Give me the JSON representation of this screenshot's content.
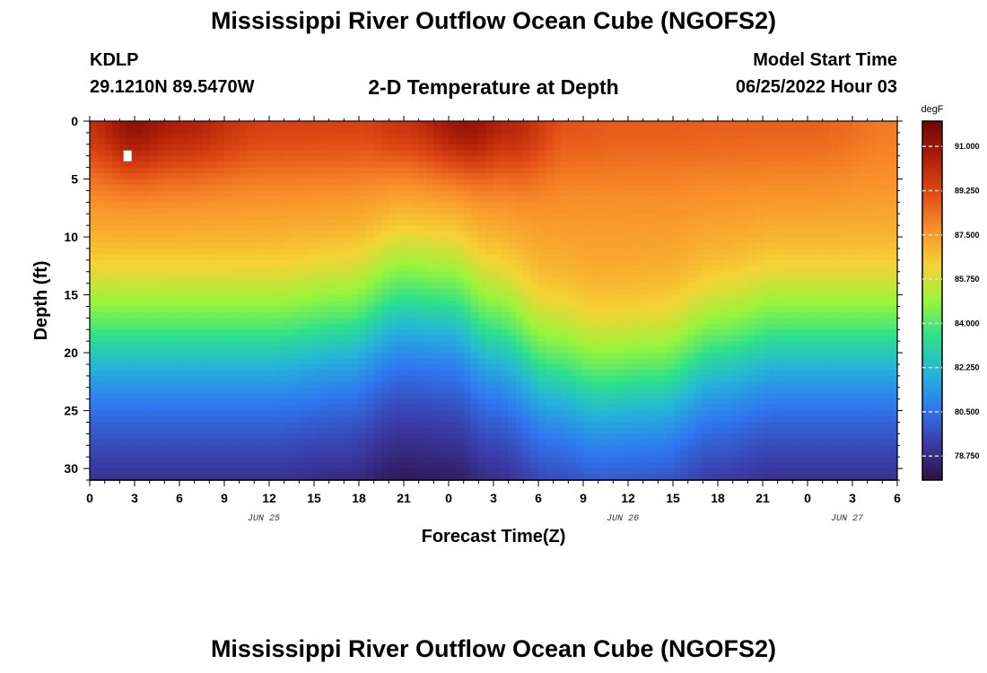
{
  "header": {
    "title": "Mississippi River Outflow Ocean Cube (NGOFS2)",
    "station": "KDLP",
    "coords": "29.1210N  89.5470W",
    "subtitle": "2-D Temperature at Depth",
    "model_start_label": "Model Start Time",
    "model_start_value": "06/25/2022 Hour 03"
  },
  "footer": {
    "title": "Mississippi River Outflow Ocean Cube (NGOFS2)"
  },
  "chart_data": {
    "type": "heatmap",
    "title": "2-D Temperature at Depth",
    "xlabel": "Forecast Time(Z)",
    "ylabel": "Depth (ft)",
    "x_tick_labels": [
      "0",
      "3",
      "6",
      "9",
      "12",
      "15",
      "18",
      "21",
      "0",
      "3",
      "6",
      "9",
      "12",
      "15",
      "18",
      "21",
      "0",
      "3",
      "6"
    ],
    "x_range_hours": [
      0,
      54
    ],
    "date_labels": [
      {
        "label": "JUN 25",
        "hour": 12
      },
      {
        "label": "JUN 26",
        "hour": 36
      },
      {
        "label": "JUN 27",
        "hour": 51
      }
    ],
    "y_ticks": [
      0,
      5,
      10,
      15,
      20,
      25,
      30
    ],
    "y_range": [
      0,
      31
    ],
    "y_reversed": true,
    "colorbar": {
      "unit": "degF",
      "range": [
        77.8,
        92.0
      ],
      "tick_values": [
        91.0,
        89.25,
        87.5,
        85.75,
        84.0,
        82.25,
        80.5,
        78.75
      ],
      "tick_labels": [
        "91.000",
        "89.250",
        "87.500",
        "85.750",
        "84.000",
        "82.250",
        "80.500",
        "78.750"
      ],
      "colormap": [
        "#2c1042",
        "#3b3aa6",
        "#2f78f0",
        "#25b6d8",
        "#2ee08c",
        "#98f53c",
        "#f6d235",
        "#f98f2a",
        "#e04a14",
        "#b01e08",
        "#6e0606"
      ]
    },
    "thermocline_depth_ft": [
      {
        "hour": 0,
        "depth": 16.6
      },
      {
        "hour": 6,
        "depth": 16.6
      },
      {
        "hour": 12,
        "depth": 16.6
      },
      {
        "hour": 17,
        "depth": 15.8
      },
      {
        "hour": 21,
        "depth": 13.4
      },
      {
        "hour": 24,
        "depth": 13.8
      },
      {
        "hour": 27,
        "depth": 16.2
      },
      {
        "hour": 31,
        "depth": 19.4
      },
      {
        "hour": 34,
        "depth": 20.6
      },
      {
        "hour": 38,
        "depth": 20.2
      },
      {
        "hour": 42,
        "depth": 17.8
      },
      {
        "hour": 46,
        "depth": 16.6
      },
      {
        "hour": 54,
        "depth": 16.6
      }
    ],
    "surface_max_degF": [
      {
        "hour": 0,
        "value": 90.2
      },
      {
        "hour": 3,
        "value": 91.6
      },
      {
        "hour": 6,
        "value": 90.8
      },
      {
        "hour": 12,
        "value": 89.6
      },
      {
        "hour": 18,
        "value": 89.6
      },
      {
        "hour": 21,
        "value": 90.4
      },
      {
        "hour": 25,
        "value": 91.7
      },
      {
        "hour": 28,
        "value": 90.6
      },
      {
        "hour": 32,
        "value": 89.0
      },
      {
        "hour": 36,
        "value": 88.8
      },
      {
        "hour": 48,
        "value": 88.8
      },
      {
        "hour": 54,
        "value": 88.2
      }
    ],
    "marker": {
      "hour": 2.5,
      "depth": 3
    }
  }
}
